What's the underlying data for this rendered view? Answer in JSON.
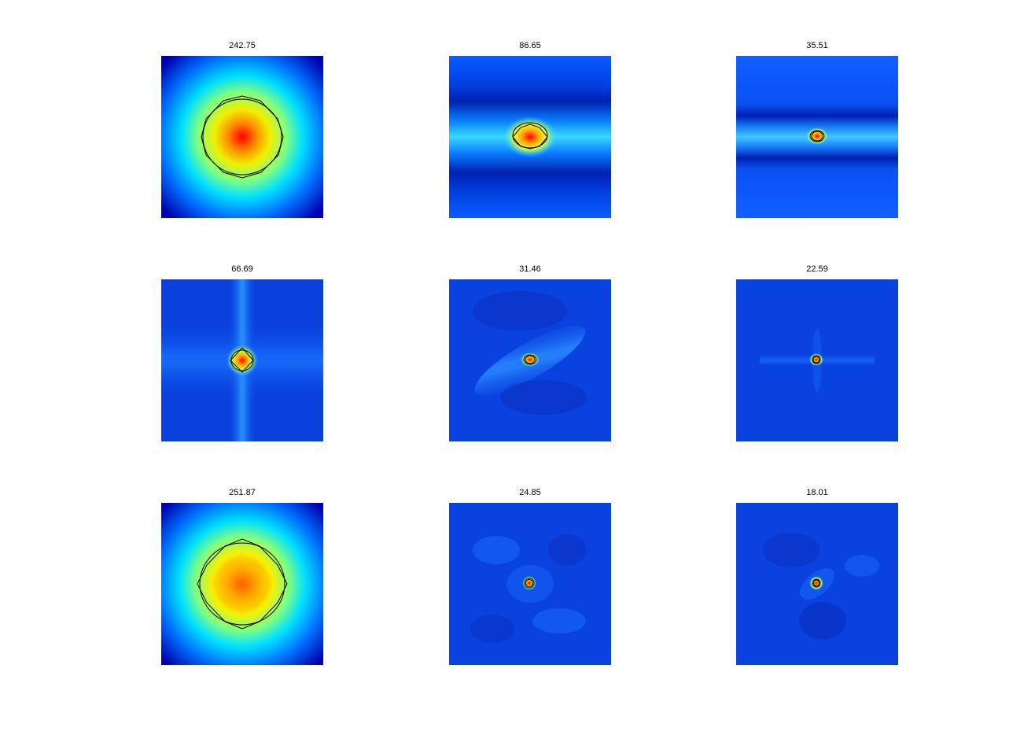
{
  "figure": {
    "colormap": "jet",
    "contour_color": "#000000"
  },
  "chart_data": [
    {
      "type": "heatmap",
      "title": "242.75",
      "pattern": "broad diamond peak",
      "peak": "red",
      "contours": 2
    },
    {
      "type": "heatmap",
      "title": "86.65",
      "pattern": "peak with horizontal band and dark lobes above and below",
      "peak": "red",
      "contours": 2
    },
    {
      "type": "heatmap",
      "title": "35.51",
      "pattern": "small peak with horizontal stripes",
      "peak": "red",
      "contours": 2
    },
    {
      "type": "heatmap",
      "title": "66.69",
      "pattern": "small peak with vertical and horizontal cross",
      "peak": "red",
      "contours": 2
    },
    {
      "type": "heatmap",
      "title": "31.46",
      "pattern": "small peak with diagonal streak",
      "peak": "red",
      "contours": 2
    },
    {
      "type": "heatmap",
      "title": "22.59",
      "pattern": "tiny peak with faint cross",
      "peak": "red",
      "contours": 2
    },
    {
      "type": "heatmap",
      "title": "251.87",
      "pattern": "broad diamond peak",
      "peak": "red",
      "contours": 2
    },
    {
      "type": "heatmap",
      "title": "24.85",
      "pattern": "tiny peak on mottled background",
      "peak": "red",
      "contours": 2
    },
    {
      "type": "heatmap",
      "title": "18.01",
      "pattern": "tiny peak on mottled background",
      "peak": "red",
      "contours": 2
    }
  ]
}
